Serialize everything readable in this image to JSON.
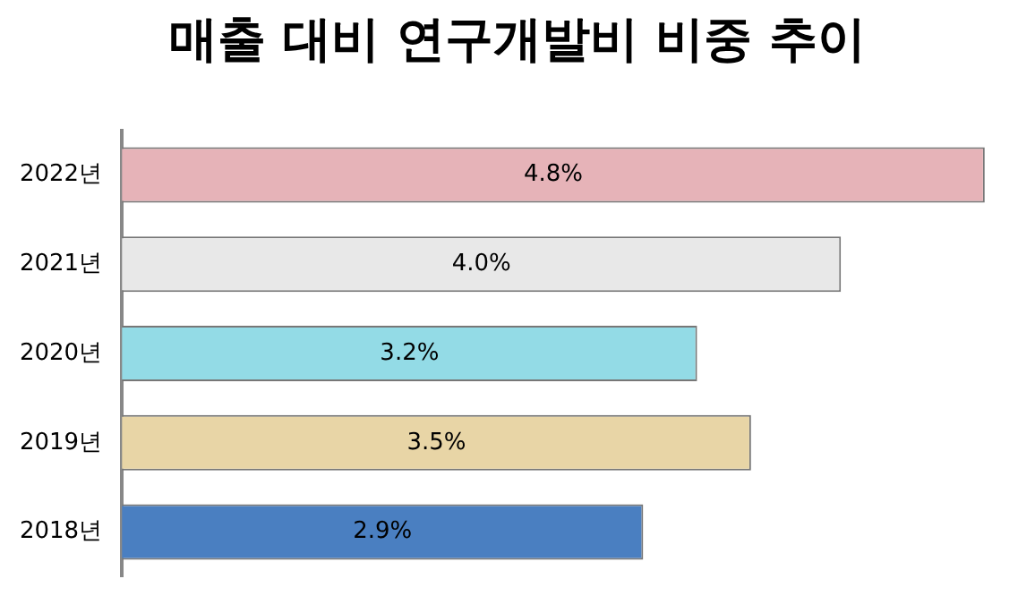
{
  "chart_data": {
    "type": "bar",
    "orientation": "horizontal",
    "title": "매출 대비 연구개발비 비중 추이",
    "categories": [
      "2022년",
      "2021년",
      "2020년",
      "2019년",
      "2018년"
    ],
    "values": [
      4.8,
      4.0,
      3.2,
      3.5,
      2.9
    ],
    "colors": [
      "#e6b3b8",
      "#e8e8e8",
      "#93dbe6",
      "#e8d5a6",
      "#4a7fc1"
    ],
    "value_labels": [
      "4.8%",
      "4.0%",
      "3.2%",
      "3.5%",
      "2.9%"
    ],
    "legend": false
  }
}
